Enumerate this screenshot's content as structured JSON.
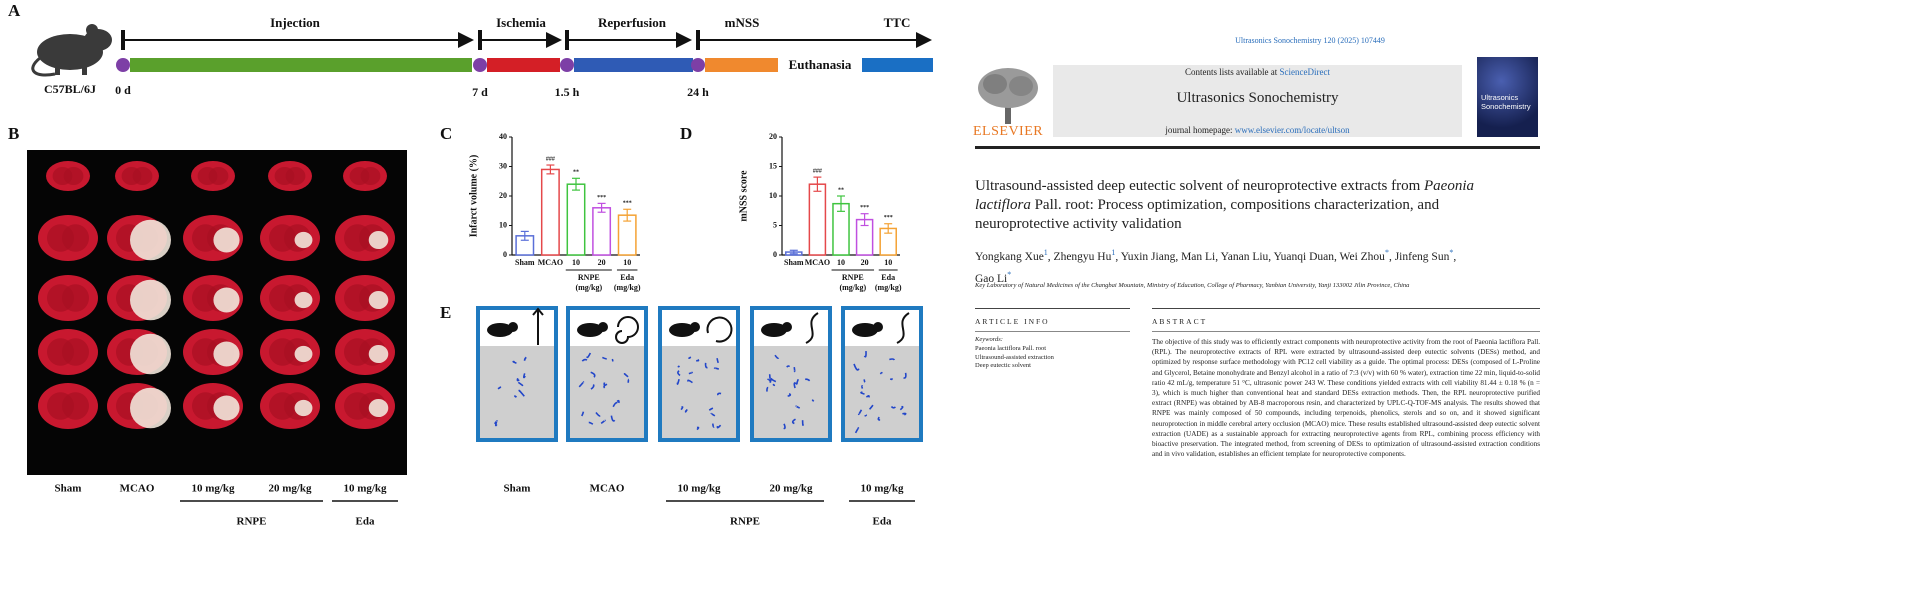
{
  "figure": {
    "panel_labels": {
      "a": "A",
      "b": "B",
      "c": "C",
      "d": "D",
      "e": "E"
    },
    "timeline": {
      "subject": "C57BL/6J",
      "phases": [
        "Injection",
        "Ischemia",
        "Reperfusion",
        "mNSS",
        "TTC"
      ],
      "times": [
        "0 d",
        "7 d",
        "1.5 h",
        "24 h"
      ],
      "end_label": "Euthanasia"
    },
    "panel_b": {
      "doses": [
        "Sham",
        "MCAO",
        "10 mg/kg",
        "20 mg/kg",
        "10 mg/kg"
      ],
      "groups": [
        "RNPE",
        "Eda"
      ]
    },
    "panel_c": {
      "type": "bar",
      "y_label": "Infarct volume (%)",
      "categories": [
        "Sham",
        "MCAO",
        "10",
        "20",
        "10"
      ],
      "values": [
        6.5,
        29,
        24,
        16,
        13.5
      ],
      "errors": [
        1.5,
        1.5,
        2,
        1.5,
        2
      ],
      "significance": [
        null,
        "###",
        "**",
        "***",
        "***"
      ],
      "colors": [
        "#5a6fd8",
        "#e5484a",
        "#3fc43f",
        "#c04fe0",
        "#f4a234"
      ],
      "groups": [
        {
          "name": "RNPE",
          "unit": "(mg/kg)"
        },
        {
          "name": "Eda",
          "unit": "(mg/kg)"
        }
      ],
      "ylim": [
        0,
        40
      ],
      "yticks": [
        0,
        10,
        20,
        30,
        40
      ]
    },
    "panel_d": {
      "type": "bar",
      "y_label": "mNSS score",
      "categories": [
        "Sham",
        "MCAO",
        "10",
        "20",
        "10"
      ],
      "values": [
        0.5,
        12,
        8.7,
        6,
        4.5
      ],
      "errors": [
        0.3,
        1.2,
        1.3,
        1,
        0.8
      ],
      "significance": [
        null,
        "###",
        "**",
        "***",
        "***"
      ],
      "colors": [
        "#5a6fd8",
        "#e5484a",
        "#3fc43f",
        "#c04fe0",
        "#f4a234"
      ],
      "groups": [
        {
          "name": "RNPE",
          "unit": "(mg/kg)"
        },
        {
          "name": "Eda",
          "unit": "(mg/kg)"
        }
      ],
      "ylim": [
        0,
        20
      ],
      "yticks": [
        0,
        5,
        10,
        15,
        20
      ]
    },
    "panel_e": {
      "doses": [
        "Sham",
        "MCAO",
        "10 mg/kg",
        "20 mg/kg",
        "10 mg/kg"
      ],
      "groups": [
        "RNPE",
        "Eda"
      ]
    }
  },
  "paper": {
    "journal_ref": "Ultrasonics Sonochemistry 120 (2025) 107449",
    "contents_prefix": "Contents lists available at ",
    "contents_link": "ScienceDirect",
    "journal_name": "Ultrasonics Sonochemistry",
    "homepage_prefix": "journal homepage: ",
    "homepage_link": "www.elsevier.com/locate/ultson",
    "publisher": "ELSEVIER",
    "cover_title": "Ultrasonics Sonochemistry",
    "title_parts": [
      {
        "text": "Ultrasound-assisted deep eutectic solvent of neuroprotective extracts from "
      },
      {
        "text": "Paeonia lactiflora",
        "italic": true
      },
      {
        "text": " Pall. root: Process optimization, compositions characterization, and neuroprotective activity validation"
      }
    ],
    "authors": [
      {
        "name": "Yongkang Xue",
        "sup": "1",
        "sep": ","
      },
      {
        "name": "Zhengyu Hu",
        "sup": "1",
        "sep": ","
      },
      {
        "name": "Yuxin Jiang",
        "sep": ","
      },
      {
        "name": "Man Li",
        "sep": ","
      },
      {
        "name": "Yanan Liu",
        "sep": ","
      },
      {
        "name": "Yuanqi Duan",
        "sep": ","
      },
      {
        "name": "Wei Zhou",
        "sup": "*",
        "sep": ","
      },
      {
        "name": "Jinfeng Sun",
        "sup": "*",
        "sep": ","
      },
      {
        "name": "Gao Li",
        "sup": "*"
      }
    ],
    "affiliation": "Key Laboratory of Natural Medicines of the Changbai Mountain, Ministry of Education, College of Pharmacy, Yanbian University, Yanji 133002 Jilin Province, China",
    "article_info_heading": "ARTICLE INFO",
    "keywords_label": "Keywords:",
    "keywords": [
      "Paeonia lactiflora Pall. root",
      "Ultrasound-assisted extraction",
      "Deep eutectic solvent"
    ],
    "abstract_heading": "ABSTRACT",
    "abstract": "The objective of this study was to efficiently extract components with neuroprotective activity from the root of Paeonia lactiflora Pall. (RPL). The neuroprotective extracts of RPL were extracted by ultrasound-assisted deep eutectic solvents (DESs) method, and optimized by response surface methodology with PC12 cell viability as a guide. The optimal process: DESs (composed of L-Proline and Glycerol, Betaine monohydrate and Benzyl alcohol in a ratio of 7:3 (v/v) with 60 % water), extraction time 22 min, liquid-to-solid ratio 42 mL/g, temperature 51 °C, ultrasonic power 243 W. These conditions yielded extracts with cell viability 81.44 ± 0.18 % (n = 3), which is much higher than conventional heat and standard DESs extraction methods. Then, the RPL neuroprotective purified extract (RNPE) was obtained by AB-8 macroporous resin, and characterized by UPLC-Q-TOF-MS analysis. The results showed that RNPE was mainly composed of 50 compounds, including terpenoids, phenolics, sterols and so on, and it showed significant neuroprotection in middle cerebral artery occlusion (MCAO) mice. These results established ultrasound-assisted deep eutectic solvent extraction (UADE) as a sustainable approach for extracting neuroprotective agents from RPL, combining process efficiency with bioactive preservation. The integrated method, from screening of DESs to optimization of ultrasound-assisted extraction conditions and in vivo validation, establishes an efficient template for neuroprotective components."
  }
}
